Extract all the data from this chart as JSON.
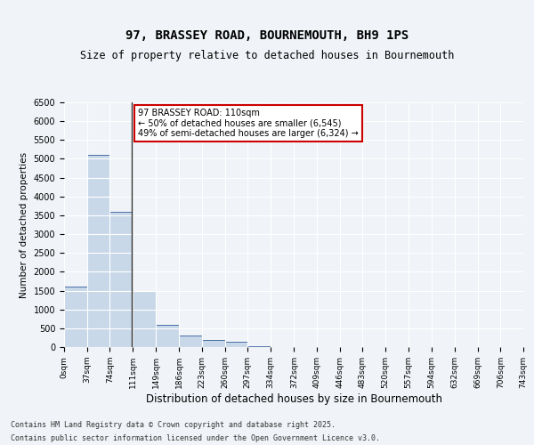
{
  "title": "97, BRASSEY ROAD, BOURNEMOUTH, BH9 1PS",
  "subtitle": "Size of property relative to detached houses in Bournemouth",
  "xlabel": "Distribution of detached houses by size in Bournemouth",
  "ylabel": "Number of detached properties",
  "footer_line1": "Contains HM Land Registry data © Crown copyright and database right 2025.",
  "footer_line2": "Contains public sector information licensed under the Open Government Licence v3.0.",
  "bin_edges": [
    0,
    37,
    74,
    111,
    149,
    186,
    223,
    260,
    297,
    334,
    372,
    409,
    446,
    483,
    520,
    557,
    594,
    632,
    669,
    706,
    743
  ],
  "bin_labels": [
    "0sqm",
    "37sqm",
    "74sqm",
    "111sqm",
    "149sqm",
    "186sqm",
    "223sqm",
    "260sqm",
    "297sqm",
    "334sqm",
    "372sqm",
    "409sqm",
    "446sqm",
    "483sqm",
    "520sqm",
    "557sqm",
    "594sqm",
    "632sqm",
    "669sqm",
    "706sqm",
    "743sqm"
  ],
  "bar_heights": [
    1600,
    5100,
    3600,
    1500,
    600,
    300,
    200,
    150,
    30,
    0,
    0,
    0,
    0,
    0,
    0,
    0,
    0,
    0,
    0,
    0
  ],
  "bar_color": "#c8d8e8",
  "bar_edge_color": "#4a6fa5",
  "property_size": 110,
  "annotation_title": "97 BRASSEY ROAD: 110sqm",
  "annotation_line1": "← 50% of detached houses are smaller (6,545)",
  "annotation_line2": "49% of semi-detached houses are larger (6,324) →",
  "vline_color": "#333333",
  "annotation_box_color": "#cc0000",
  "ylim": [
    0,
    6500
  ],
  "yticks": [
    0,
    500,
    1000,
    1500,
    2000,
    2500,
    3000,
    3500,
    4000,
    4500,
    5000,
    5500,
    6000,
    6500
  ],
  "background_color": "#f0f4f8",
  "plot_background": "#f0f4f8",
  "grid_color": "#ffffff"
}
